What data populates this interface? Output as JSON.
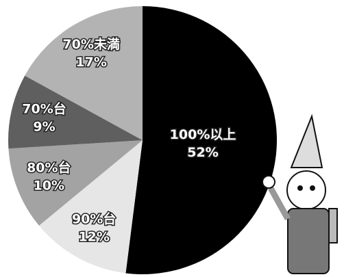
{
  "chart_data": {
    "type": "pie",
    "categories": [
      "100%以上",
      "90%台",
      "80%台",
      "70%台",
      "70%未満"
    ],
    "values": [
      52,
      12,
      10,
      9,
      17
    ],
    "value_labels": [
      "52%",
      "12%",
      "10%",
      "9%",
      "17%"
    ],
    "colors": [
      "#000000",
      "#e6e6e6",
      "#a3a3a3",
      "#5f5f5f",
      "#b3b3b3"
    ]
  }
}
